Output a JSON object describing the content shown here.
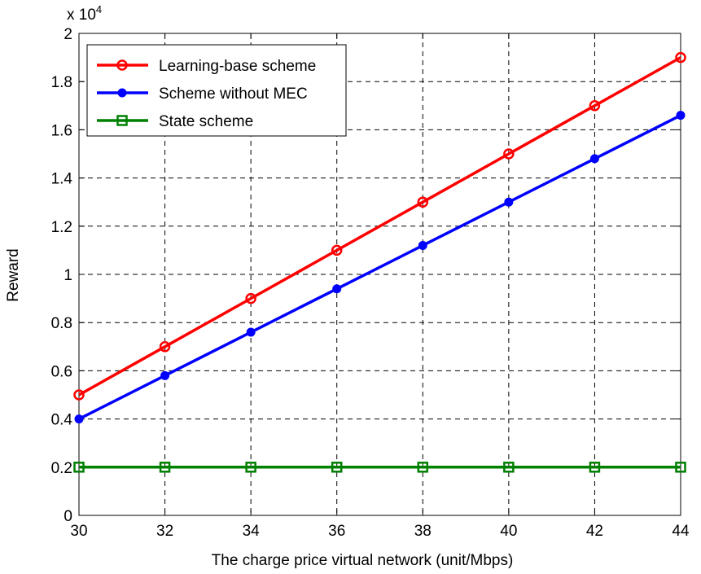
{
  "chart_data": {
    "type": "line",
    "title": "",
    "xlabel": "The charge price virtual network (unit/Mbps)",
    "ylabel": "Reward",
    "y_multiplier_base": "x 10",
    "y_multiplier_exp": "4",
    "xlim": [
      30,
      44
    ],
    "ylim": [
      0,
      2
    ],
    "x": [
      30,
      32,
      34,
      36,
      38,
      40,
      42,
      44
    ],
    "x_ticks": [
      "30",
      "32",
      "34",
      "36",
      "38",
      "40",
      "42",
      "44"
    ],
    "y_ticks": [
      "0",
      "0.2",
      "0.4",
      "0.6",
      "0.8",
      "1",
      "1.2",
      "1.4",
      "1.6",
      "1.8",
      "2"
    ],
    "y_tick_values": [
      0,
      0.2,
      0.4,
      0.6,
      0.8,
      1.0,
      1.2,
      1.4,
      1.6,
      1.8,
      2.0
    ],
    "grid": true,
    "legend_position": "top-left",
    "series": [
      {
        "name": "Learning-base scheme",
        "color": "#ff0000",
        "marker": "circle",
        "values": [
          0.5,
          0.7,
          0.9,
          1.1,
          1.3,
          1.5,
          1.7,
          1.9
        ]
      },
      {
        "name": "Scheme without MEC",
        "color": "#0000ff",
        "marker": "dot",
        "values": [
          0.4,
          0.58,
          0.76,
          0.94,
          1.12,
          1.3,
          1.48,
          1.66
        ]
      },
      {
        "name": "State scheme",
        "color": "#008000",
        "marker": "square",
        "values": [
          0.2,
          0.2,
          0.2,
          0.2,
          0.2,
          0.2,
          0.2,
          0.2
        ]
      }
    ]
  }
}
